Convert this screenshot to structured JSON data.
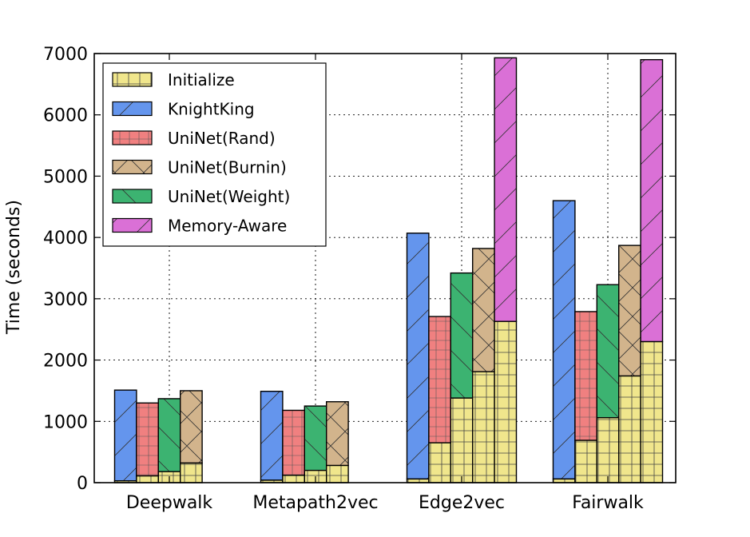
{
  "chart_data": {
    "type": "bar",
    "stacked": true,
    "title": "",
    "xlabel": "",
    "ylabel": "Time (seconds)",
    "ylim": [
      0,
      7000
    ],
    "yticks": [
      0,
      1000,
      2000,
      3000,
      4000,
      5000,
      6000,
      7000
    ],
    "grid": true,
    "legend_position": "top-left",
    "categories": [
      "Deepwalk",
      "Metapath2vec",
      "Edge2vec",
      "Fairwalk"
    ],
    "series": [
      {
        "name": "Initialize",
        "color": "#f0e68c",
        "hatch": "cross"
      },
      {
        "name": "KnightKing",
        "color": "#6495ed",
        "hatch": "diagonal"
      },
      {
        "name": "UniNet(Rand)",
        "color": "#f08080",
        "hatch": "plus"
      },
      {
        "name": "UniNet(Burnin)",
        "color": "#d2b48c",
        "hatch": "x"
      },
      {
        "name": "UniNet(Weight)",
        "color": "#3cb371",
        "hatch": "backdiagonal"
      },
      {
        "name": "Memory-Aware",
        "color": "#da70d6",
        "hatch": "diagonal"
      }
    ],
    "groups": [
      {
        "category": "Deepwalk",
        "bars": [
          {
            "method": "KnightKing",
            "initialize": 30,
            "total": 1510
          },
          {
            "method": "UniNet(Rand)",
            "initialize": 110,
            "total": 1300
          },
          {
            "method": "UniNet(Weight)",
            "initialize": 180,
            "total": 1370
          },
          {
            "method": "UniNet(Burnin)",
            "initialize": 320,
            "total": 1500
          }
        ]
      },
      {
        "category": "Metapath2vec",
        "bars": [
          {
            "method": "KnightKing",
            "initialize": 40,
            "total": 1490
          },
          {
            "method": "UniNet(Rand)",
            "initialize": 120,
            "total": 1180
          },
          {
            "method": "UniNet(Weight)",
            "initialize": 200,
            "total": 1250
          },
          {
            "method": "UniNet(Burnin)",
            "initialize": 280,
            "total": 1320
          }
        ]
      },
      {
        "category": "Edge2vec",
        "bars": [
          {
            "method": "KnightKing",
            "initialize": 60,
            "total": 4070
          },
          {
            "method": "UniNet(Rand)",
            "initialize": 650,
            "total": 2710
          },
          {
            "method": "UniNet(Weight)",
            "initialize": 1380,
            "total": 3420
          },
          {
            "method": "UniNet(Burnin)",
            "initialize": 1810,
            "total": 3820
          },
          {
            "method": "Memory-Aware",
            "initialize": 2630,
            "total": 6930
          }
        ]
      },
      {
        "category": "Fairwalk",
        "bars": [
          {
            "method": "KnightKing",
            "initialize": 60,
            "total": 4600
          },
          {
            "method": "UniNet(Rand)",
            "initialize": 690,
            "total": 2790
          },
          {
            "method": "UniNet(Weight)",
            "initialize": 1060,
            "total": 3230
          },
          {
            "method": "UniNet(Burnin)",
            "initialize": 1740,
            "total": 3870
          },
          {
            "method": "Memory-Aware",
            "initialize": 2300,
            "total": 6900
          }
        ]
      }
    ]
  }
}
